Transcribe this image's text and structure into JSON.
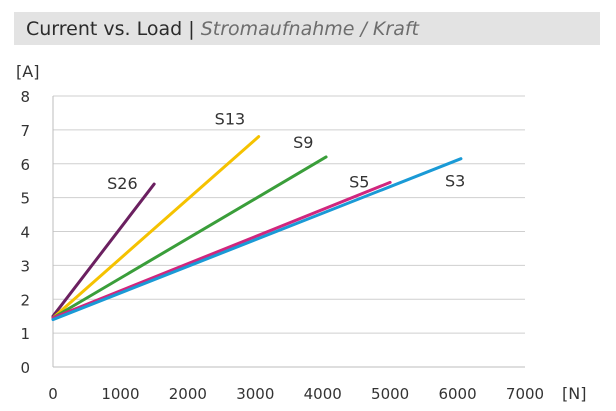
{
  "title": {
    "main": "Current vs. Load",
    "separator": "|",
    "sub": "Stromaufnahme / Kraft"
  },
  "chart_data": {
    "type": "line",
    "ylabel": "[A]",
    "xlabel": "[N]",
    "xlim": [
      0,
      7000
    ],
    "ylim": [
      0,
      8
    ],
    "x_ticks": [
      0,
      1000,
      2000,
      3000,
      4000,
      5000,
      6000,
      7000
    ],
    "y_ticks": [
      0,
      1,
      2,
      3,
      4,
      5,
      6,
      7,
      8
    ],
    "grid": "horizontal",
    "legend": "inline-labels",
    "series": [
      {
        "name": "S26",
        "color": "#6b2060",
        "x": [
          0,
          1500
        ],
        "y": [
          1.5,
          5.4
        ]
      },
      {
        "name": "S13",
        "color": "#f5c200",
        "x": [
          0,
          3050
        ],
        "y": [
          1.45,
          6.8
        ]
      },
      {
        "name": "S9",
        "color": "#3a9e3a",
        "x": [
          0,
          4050
        ],
        "y": [
          1.45,
          6.2
        ]
      },
      {
        "name": "S5",
        "color": "#d0267e",
        "x": [
          0,
          5000
        ],
        "y": [
          1.45,
          5.45
        ]
      },
      {
        "name": "S3",
        "color": "#1a9ad6",
        "x": [
          0,
          6050
        ],
        "y": [
          1.4,
          6.15
        ]
      }
    ]
  }
}
